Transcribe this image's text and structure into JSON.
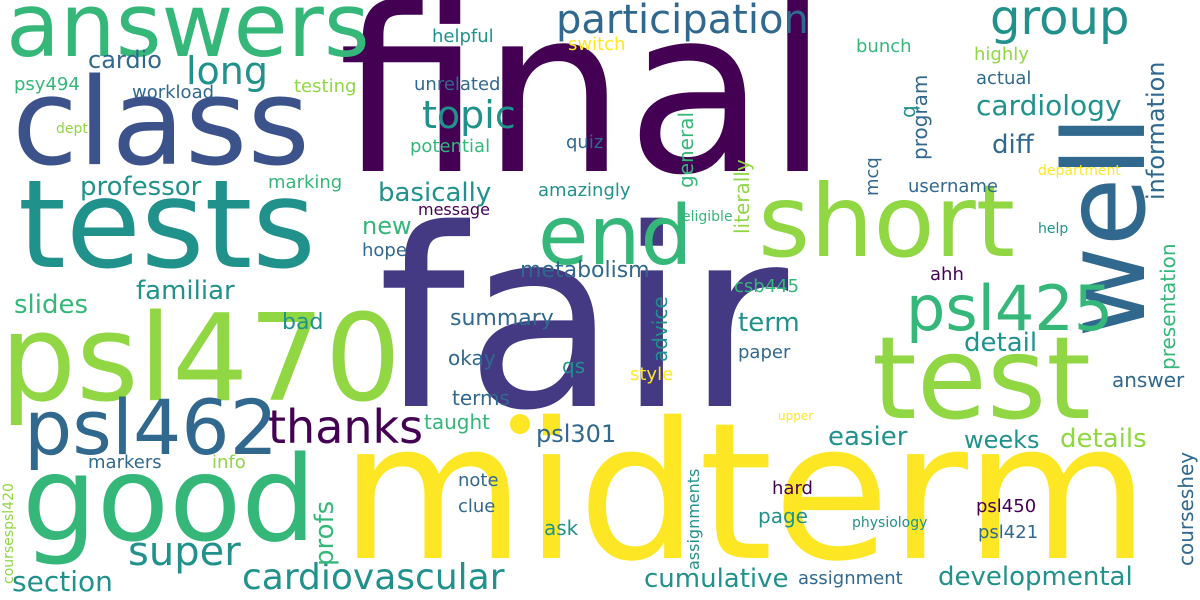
{
  "palette": {
    "purple": "#440154",
    "indigo": "#443983",
    "blue": "#31688e",
    "teal": "#21918c",
    "green": "#35b779",
    "lime": "#90d743",
    "yellow": "#fde725"
  },
  "words": {
    "final": "final",
    "fair": "fair",
    "midterm": "midterm",
    "tests": "tests",
    "class": "class",
    "answers": "answers",
    "psl470": "psl470",
    "good": "good",
    "test": "test",
    "short": "short",
    "well": "well",
    "end": "end",
    "psl462": "psl462",
    "psl425": "psl425",
    "participation": "participation",
    "group": "group",
    "thanks": "thanks",
    "cardiovascular": "cardiovascular",
    "super": "super",
    "long": "long",
    "topic": "topic",
    "cardiology": "cardiology",
    "developmental": "developmental",
    "cumulative": "cumulative",
    "professor": "professor",
    "basically": "basically",
    "familiar": "familiar",
    "slides": "slides",
    "section": "section",
    "cardio": "cardio",
    "term": "term",
    "detail": "detail",
    "details": "details",
    "easier": "easier",
    "weeks": "weeks",
    "diff": "diff",
    "psl301": "psl301",
    "information": "information",
    "presentation": "presentation",
    "answer": "answer",
    "courseshey": "courseshey",
    "profs": "profs",
    "new": "new",
    "bad": "bad",
    "metabolism": "metabolism",
    "summary": "summary",
    "okay": "okay",
    "qs": "qs",
    "terms": "terms",
    "taught": "taught",
    "markers": "markers",
    "info": "info",
    "note": "note",
    "clue": "clue",
    "ask": "ask",
    "hard": "hard",
    "page": "page",
    "paper": "paper",
    "style": "style",
    "advice": "advice",
    "csb445": "csb445",
    "ahh": "ahh",
    "psl450": "psl450",
    "psl421": "psl421",
    "physiology": "physiology",
    "upper": "upper",
    "assignments": "assignments",
    "assignment": "assignment",
    "coursespsl420": "coursespsl420",
    "helpful": "helpful",
    "switch": "switch",
    "bunch": "bunch",
    "highly": "highly",
    "actual": "actual",
    "program": "program",
    "q": "q",
    "unrelated": "unrelated",
    "potential": "potential",
    "quiz": "quiz",
    "general": "general",
    "literally": "literally",
    "mcq": "mcq",
    "username": "username",
    "department": "department",
    "eligible": "eligible",
    "help": "help",
    "message": "message",
    "amazingly": "amazingly",
    "hope": "hope",
    "marking": "marking",
    "workload": "workload",
    "testing": "testing",
    "psy494": "psy494",
    "dept": "dept"
  }
}
